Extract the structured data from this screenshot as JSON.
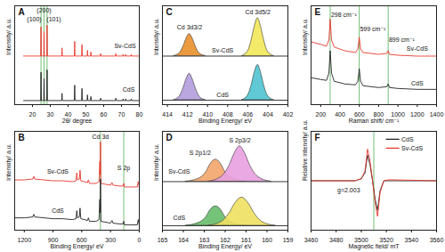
{
  "chart_data": [
    {
      "type": "line",
      "title": "A",
      "x_label": "2θ/ degree",
      "y_label": "Intensity/ a.u.",
      "xlim": [
        10,
        80
      ],
      "xticks": [
        20,
        30,
        40,
        50,
        60,
        70,
        80
      ],
      "ylim": [
        0,
        122
      ],
      "tick_labels": "x",
      "vlines": {
        "values": [
          24.8,
          26.5,
          28.2
        ],
        "color": "#4caf50"
      },
      "series": [
        {
          "color": "#e8392d",
          "x": [
            15,
            24.6,
            24.8,
            25.0,
            26.3,
            26.5,
            26.7,
            28.0,
            28.2,
            28.4,
            36.4,
            36.6,
            36.8,
            43.5,
            43.7,
            43.9,
            47.6,
            47.8,
            48.0,
            50.7,
            50.9,
            51.1,
            52.6,
            52.8,
            53.0,
            58.1,
            58.3,
            58.5,
            66.6,
            66.8,
            67.0,
            70.7,
            70.9,
            71.1,
            72.2,
            72.4,
            72.6,
            75.3,
            75.5,
            75.7,
            80
          ],
          "values": [
            60,
            60,
            96,
            60,
            60,
            90,
            60,
            60,
            98,
            60,
            60,
            70,
            60,
            60,
            78,
            60,
            60,
            74,
            60,
            60,
            67,
            60,
            60,
            65,
            60,
            60,
            63,
            60,
            60,
            63,
            60,
            60,
            62,
            60,
            60,
            62,
            60,
            60,
            62,
            60,
            60
          ]
        },
        {
          "color": "#222222",
          "x": [
            15,
            24.6,
            24.8,
            25.0,
            26.3,
            26.5,
            26.7,
            28.0,
            28.2,
            28.4,
            36.4,
            36.6,
            36.8,
            43.5,
            43.7,
            43.9,
            47.6,
            47.8,
            48.0,
            50.7,
            50.9,
            51.1,
            52.6,
            52.8,
            53.0,
            58.1,
            58.3,
            58.5,
            66.6,
            66.8,
            67.0,
            70.7,
            70.9,
            71.1,
            72.2,
            72.4,
            72.6,
            75.3,
            75.5,
            75.7,
            80
          ],
          "values": [
            5,
            5,
            40,
            5,
            5,
            32,
            5,
            5,
            43,
            5,
            5,
            14,
            5,
            5,
            24,
            5,
            5,
            20,
            5,
            5,
            12,
            5,
            5,
            10,
            5,
            5,
            8,
            5,
            5,
            8,
            5,
            5,
            7,
            5,
            5,
            7,
            5,
            5,
            7,
            5,
            5
          ]
        }
      ],
      "annotations": [
        {
          "text": "(100)",
          "x": 21,
          "y": 105
        },
        {
          "text": "(200)",
          "x": 26.5,
          "y": 116
        },
        {
          "text": "(101)",
          "x": 32,
          "y": 105
        },
        {
          "text": "Sv-CdS",
          "x": 72,
          "y": 72
        },
        {
          "text": "CdS",
          "x": 74,
          "y": 18
        }
      ]
    },
    {
      "type": "line",
      "title": "B",
      "x_label": "Binding Energy/ eV",
      "y_label": "Intensity/ a.u.",
      "xlim": [
        1300,
        0
      ],
      "xticks": [
        1200,
        900,
        600,
        300,
        0
      ],
      "ylim": [
        0,
        112
      ],
      "tick_labels": "x",
      "vlines": {
        "values": [
          405,
          162
        ],
        "color": "#4caf50"
      },
      "series": [
        {
          "color": "#e8392d",
          "x": [
            1300,
            1200,
            1110,
            1100,
            1090,
            900,
            800,
            700,
            660,
            652,
            645,
            625,
            618,
            610,
            540,
            531,
            520,
            450,
            420,
            412,
            408,
            405,
            400,
            300,
            285,
            275,
            200,
            170,
            162,
            155,
            100,
            20,
            11,
            0
          ],
          "values": [
            57,
            57,
            58,
            61,
            58,
            56,
            56,
            55,
            56,
            65,
            57,
            58,
            68,
            56,
            54,
            57,
            53,
            53,
            55,
            78,
            63,
            100,
            53,
            51,
            54,
            51,
            50,
            50,
            53,
            49,
            49,
            49,
            55,
            49
          ]
        },
        {
          "color": "#222222",
          "x": [
            1300,
            1200,
            1110,
            1100,
            1090,
            900,
            800,
            700,
            660,
            652,
            645,
            625,
            618,
            610,
            540,
            531,
            520,
            450,
            420,
            412,
            408,
            405,
            400,
            300,
            285,
            275,
            200,
            170,
            162,
            155,
            100,
            20,
            11,
            0
          ],
          "values": [
            14,
            14,
            15,
            18,
            15,
            13,
            13,
            12,
            13,
            22,
            14,
            15,
            25,
            13,
            11,
            14,
            10,
            10,
            12,
            35,
            20,
            58,
            10,
            8,
            11,
            8,
            7,
            7,
            10,
            6,
            6,
            6,
            12,
            6
          ]
        }
      ],
      "annotations": [
        {
          "text": "Cd 3d",
          "x": 405,
          "y": 106
        },
        {
          "text": "S 2p",
          "x": 162,
          "y": 70
        },
        {
          "text": "Sv-CdS",
          "x": 850,
          "y": 66
        },
        {
          "text": "CdS",
          "x": 850,
          "y": 22
        }
      ]
    },
    {
      "type": "line",
      "title": "C",
      "x_label": "Binding Energy/ eV",
      "y_label": "Intensity/ a.u.",
      "xlim": [
        414.5,
        402
      ],
      "xticks": [
        414,
        412,
        410,
        408,
        406,
        404,
        402
      ],
      "ylim": [
        0,
        112
      ],
      "tick_labels": "x",
      "series": [
        {
          "type": "line",
          "color": "#222222",
          "x": [
            414.5,
            402
          ],
          "values": [
            55,
            55
          ]
        },
        {
          "type": "line",
          "color": "#222222",
          "x": [
            414.5,
            402
          ],
          "values": [
            5,
            5
          ]
        },
        {
          "type": "area",
          "color": "#e8902a",
          "baseline": 55,
          "x": [
            410.2,
            410.8,
            411.2,
            411.5,
            411.8,
            412.1,
            412.4,
            412.8,
            413.4
          ],
          "values": [
            55,
            58,
            66,
            75,
            80,
            75,
            66,
            58,
            55
          ]
        },
        {
          "type": "area",
          "color": "#f2e85a",
          "baseline": 55,
          "x": [
            403.4,
            404.0,
            404.4,
            404.7,
            405.0,
            405.3,
            405.6,
            406.0,
            406.6
          ],
          "values": [
            55,
            60,
            74,
            89,
            98,
            89,
            74,
            60,
            55
          ]
        },
        {
          "type": "area",
          "color": "#b39ddb",
          "baseline": 5,
          "x": [
            410.2,
            410.8,
            411.2,
            411.5,
            411.8,
            412.1,
            412.4,
            412.8,
            413.4
          ],
          "values": [
            5,
            9,
            19,
            29,
            35,
            29,
            19,
            9,
            5
          ]
        },
        {
          "type": "area",
          "color": "#4fc3d0",
          "baseline": 5,
          "x": [
            403.4,
            404.0,
            404.4,
            404.7,
            405.0,
            405.3,
            405.6,
            406.0,
            406.6
          ],
          "values": [
            5,
            10,
            23,
            37,
            45,
            37,
            23,
            10,
            5
          ]
        }
      ],
      "annotations": [
        {
          "text": "Cd 3d3/2",
          "x": 411.8,
          "y": 88
        },
        {
          "text": "Cd 3d5/2",
          "x": 405,
          "y": 105
        },
        {
          "text": "Sv-CdS",
          "x": 408.5,
          "y": 61
        },
        {
          "text": "CdS",
          "x": 408.5,
          "y": 11
        }
      ]
    },
    {
      "type": "line",
      "title": "D",
      "x_label": "Binding Energy/ eV",
      "y_label": "Intensity/ a.u.",
      "xlim": [
        165,
        159
      ],
      "xticks": [
        165,
        164,
        163,
        162,
        161,
        160,
        159
      ],
      "ylim": [
        0,
        112
      ],
      "tick_labels": "x",
      "series": [
        {
          "type": "line",
          "color": "#222222",
          "x": [
            165,
            159
          ],
          "values": [
            55,
            55
          ]
        },
        {
          "type": "line",
          "color": "#222222",
          "x": [
            165,
            159
          ],
          "values": [
            5,
            5
          ]
        },
        {
          "type": "area",
          "color": "#f2a56b",
          "baseline": 55,
          "x": [
            161.0,
            161.6,
            162.0,
            162.2,
            162.45,
            162.7,
            162.9,
            163.3,
            163.9
          ],
          "values": [
            55,
            58,
            66,
            75,
            80,
            75,
            66,
            58,
            55
          ]
        },
        {
          "type": "area",
          "color": "#e8a0e0",
          "baseline": 55,
          "x": [
            159.8,
            160.4,
            160.8,
            161.05,
            161.3,
            161.55,
            161.8,
            162.2,
            162.8
          ],
          "values": [
            55,
            60,
            73,
            87,
            95,
            87,
            73,
            60,
            55
          ]
        },
        {
          "type": "area",
          "color": "#66bb6a",
          "baseline": 5,
          "x": [
            161.0,
            161.6,
            162.0,
            162.2,
            162.45,
            162.7,
            162.9,
            163.3,
            163.9
          ],
          "values": [
            5,
            8,
            15,
            23,
            27,
            23,
            15,
            8,
            5
          ]
        },
        {
          "type": "area",
          "color": "#f0e060",
          "baseline": 5,
          "x": [
            159.6,
            160.2,
            160.6,
            160.9,
            161.2,
            161.5,
            161.8,
            162.2,
            162.8
          ],
          "values": [
            5,
            9,
            19,
            31,
            37,
            31,
            19,
            9,
            5
          ]
        }
      ],
      "annotations": [
        {
          "text": "S 2p1/2",
          "x": 163.2,
          "y": 88
        },
        {
          "text": "S 2p3/2",
          "x": 161.3,
          "y": 102
        },
        {
          "text": "Sv-CdS",
          "x": 164.2,
          "y": 66
        },
        {
          "text": "CdS",
          "x": 164.2,
          "y": 14
        }
      ]
    },
    {
      "type": "line",
      "title": "E",
      "x_label": "Raman shift/ cm⁻¹",
      "y_label": "Intensity/ a.u.",
      "xlim": [
        100,
        1400
      ],
      "xticks": [
        200,
        400,
        600,
        800,
        1000,
        1200,
        1400
      ],
      "ylim": [
        0,
        110
      ],
      "tick_labels": "x",
      "vlines": {
        "values": [
          298,
          599,
          899
        ],
        "color": "#4caf50"
      },
      "series": [
        {
          "color": "#e8392d",
          "x": [
            100,
            200,
            260,
            285,
            298,
            312,
            340,
            450,
            560,
            585,
            599,
            613,
            640,
            800,
            885,
            899,
            913,
            1000,
            1200,
            1400
          ],
          "values": [
            70,
            67,
            65,
            72,
            95,
            72,
            64,
            60,
            58,
            62,
            75,
            62,
            58,
            56,
            57,
            60,
            56,
            55,
            54,
            54
          ]
        },
        {
          "color": "#222222",
          "x": [
            100,
            200,
            260,
            285,
            298,
            312,
            340,
            450,
            560,
            585,
            599,
            613,
            640,
            800,
            885,
            899,
            913,
            1000,
            1200,
            1400
          ],
          "values": [
            30,
            28,
            27,
            35,
            60,
            35,
            26,
            23,
            22,
            26,
            40,
            26,
            21,
            19,
            20,
            23,
            19,
            18,
            17,
            17
          ]
        }
      ],
      "annotations": [
        {
          "text": "298 cm⁻¹",
          "x": 440,
          "y": 100
        },
        {
          "text": "599 cm⁻¹",
          "x": 740,
          "y": 84
        },
        {
          "text": "899 cm⁻¹",
          "x": 1040,
          "y": 72
        },
        {
          "text": "Sv-CdS",
          "x": 1200,
          "y": 62
        },
        {
          "text": "CdS",
          "x": 1200,
          "y": 24
        }
      ]
    },
    {
      "type": "line",
      "title": "F",
      "x_label": "Magnetic field/ mT",
      "y_label": "Relative intensity/ a.u.",
      "xlim": [
        3460,
        3560
      ],
      "xticks": [
        3460,
        3480,
        3500,
        3520,
        3540,
        3560
      ],
      "ylim": [
        0,
        100
      ],
      "tick_labels": "x",
      "legend": "top-right",
      "vlines": {
        "values": [
          3510
        ],
        "color": "#4caf50"
      },
      "series": [
        {
          "name": "CdS",
          "color": "#222222",
          "x": [
            3460,
            3495,
            3500,
            3503,
            3505,
            3507,
            3509,
            3511,
            3513,
            3515,
            3518,
            3522,
            3560
          ],
          "values": [
            50,
            50,
            52,
            58,
            76,
            66,
            50,
            32,
            20,
            40,
            50,
            50,
            50
          ]
        },
        {
          "name": "Sv-CdS",
          "color": "#e8392d",
          "x": [
            3460,
            3495,
            3500,
            3503,
            3505,
            3507,
            3509,
            3511,
            3513,
            3515,
            3518,
            3522,
            3560
          ],
          "values": [
            50,
            50,
            52,
            60,
            82,
            70,
            50,
            28,
            14,
            38,
            50,
            51,
            50
          ]
        }
      ],
      "annotations": [
        {
          "text": "g=2.003",
          "x": 3490,
          "y": 40
        }
      ]
    }
  ]
}
